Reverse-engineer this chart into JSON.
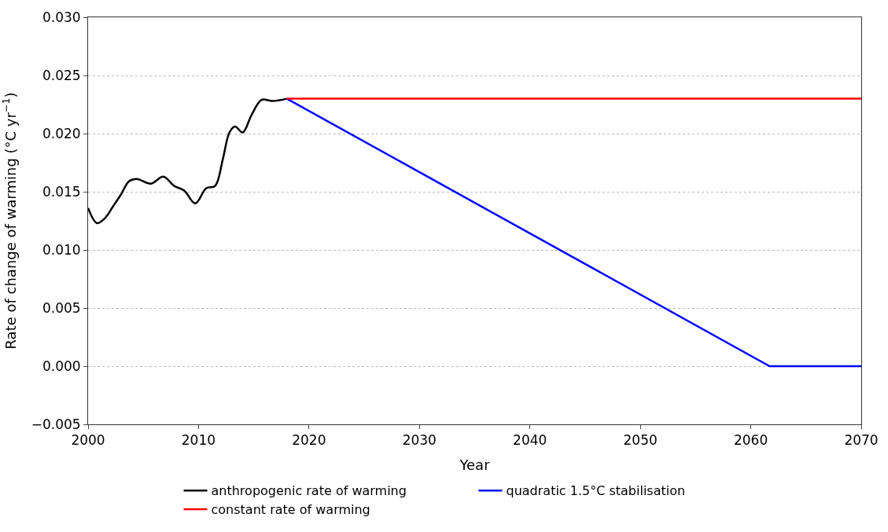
{
  "chart_data": {
    "type": "line",
    "xlabel": "Year",
    "ylabel": "Rate of change of warming (°C yr$^{−1}$)",
    "xlim": [
      2000,
      2070
    ],
    "xticks": [
      2000,
      2010,
      2020,
      2030,
      2040,
      2050,
      2060,
      2070
    ],
    "ylim": [
      -0.005,
      0.03
    ],
    "yticks": [
      {
        "value": -0.005,
        "label": "−0.005"
      },
      {
        "value": 0,
        "label": "0.000"
      },
      {
        "value": 0.005,
        "label": "0.005"
      },
      {
        "value": 0.01,
        "label": "0.010"
      },
      {
        "value": 0.015,
        "label": "0.015"
      },
      {
        "value": 0.02,
        "label": "0.020"
      },
      {
        "value": 0.025,
        "label": "0.025"
      },
      {
        "value": 0.03,
        "label": "0.030"
      }
    ],
    "grid": "y",
    "legend": "bottom",
    "line_style": "solid",
    "marker": "none",
    "series": [
      {
        "name": "anthropogenic rate of warming",
        "color": "#000000",
        "x": [
          2000,
          2000.8,
          2001.5,
          2002.3,
          2003.0,
          2003.7,
          2004.4,
          2005.7,
          2006.8,
          2007.8,
          2008.7,
          2009.7,
          2010.7,
          2011.5,
          2012.2,
          2012.8,
          2013.3,
          2014.0,
          2014.8,
          2015.7,
          2016.7,
          2018.0
        ],
        "values": [
          0.0136,
          0.0123,
          0.0127,
          0.0138,
          0.0148,
          0.0159,
          0.0161,
          0.0157,
          0.0163,
          0.0155,
          0.0151,
          0.014,
          0.0153,
          0.0155,
          0.0178,
          0.0201,
          0.0206,
          0.0201,
          0.0216,
          0.0229,
          0.0228,
          0.023
        ]
      },
      {
        "name": "quadratic 1.5°C stabilisation",
        "color": "#0000ff",
        "x": [
          2018.0,
          2061.7,
          2070
        ],
        "values": [
          0.023,
          0,
          0
        ]
      },
      {
        "name": "constant rate of warming",
        "color": "#ff0000",
        "x": [
          2018.0,
          2070
        ],
        "values": [
          0.023,
          0.023
        ]
      }
    ]
  }
}
